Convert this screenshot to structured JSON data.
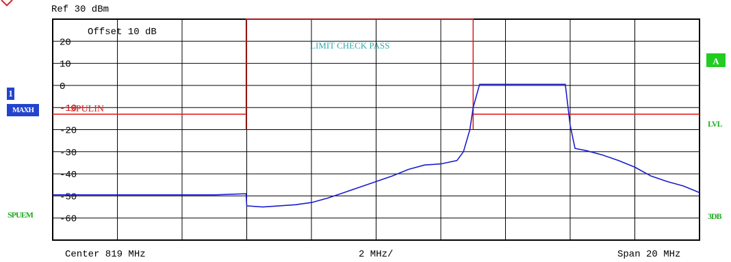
{
  "header": {
    "ref_text": "Ref  30 dBm",
    "offset_text": "Offset  10 dB",
    "limit_check_text": "LIMIT CHECK   PASS"
  },
  "left_panel": {
    "trace_number": "1",
    "trace_mode": "MAXH",
    "limit_line_name": "SPUEM"
  },
  "right_panel": {
    "trace_badge": "A",
    "limit_label": "LVL",
    "state_label": "3DB"
  },
  "footer": {
    "center_text": "Center 819 MHz",
    "div_text": "2 MHz/",
    "span_text": "Span 20 MHz"
  },
  "colors": {
    "grid": "#000000",
    "trace": "#1a1acc",
    "limit": "#e02020",
    "label_green": "#22aa22",
    "limit_check": "#33aaaa",
    "trace_badge_bg": "#2244cc",
    "marker": "#e02020"
  },
  "chart_data": {
    "type": "line",
    "title": "",
    "xlabel": "",
    "ylabel": "",
    "xlim": [
      809,
      829
    ],
    "ylim": [
      -70,
      30
    ],
    "yticks": [
      20,
      10,
      0,
      -10,
      -20,
      -30,
      -40,
      -50,
      -60
    ],
    "ytick_labels": [
      "20",
      "10",
      "0",
      "-10",
      "-20",
      "-30",
      "-40",
      "-50",
      "-60"
    ],
    "grid": true,
    "series": [
      {
        "name": "1",
        "x": [
          809.0,
          810.0,
          811.0,
          812.0,
          813.0,
          814.0,
          814.98,
          815.0,
          815.5,
          816.0,
          816.5,
          817.0,
          817.5,
          818.0,
          818.5,
          819.0,
          819.5,
          820.0,
          820.5,
          821.0,
          821.5,
          821.7,
          821.9,
          822.0,
          822.2,
          823.0,
          824.0,
          824.5,
          824.85,
          825.0,
          825.15,
          825.5,
          826.0,
          826.5,
          827.0,
          827.5,
          828.0,
          828.5,
          829.0
        ],
        "y": [
          -49.5,
          -49.5,
          -49.5,
          -49.5,
          -49.5,
          -49.5,
          -49.0,
          -54.5,
          -55.0,
          -54.5,
          -54.0,
          -53.0,
          -51.0,
          -48.5,
          -46.0,
          -43.5,
          -41.0,
          -38.0,
          -36.0,
          -35.5,
          -34.0,
          -30.0,
          -20.0,
          -10.0,
          0.5,
          0.5,
          0.5,
          0.5,
          0.5,
          -18.0,
          -28.5,
          -29.5,
          -31.5,
          -34.0,
          -37.0,
          -41.0,
          -43.5,
          -45.5,
          -48.5
        ]
      },
      {
        "name": "SPUEM",
        "x": [
          809.0,
          814.98,
          814.98,
          814.98,
          822.0,
          822.0,
          822.0,
          829.0
        ],
        "y": [
          -13.0,
          -13.0,
          -20.0,
          30.0,
          30.0,
          -20.0,
          -13.0,
          -13.0
        ]
      }
    ],
    "annotations": [
      "-10",
      "SPULIN"
    ]
  }
}
